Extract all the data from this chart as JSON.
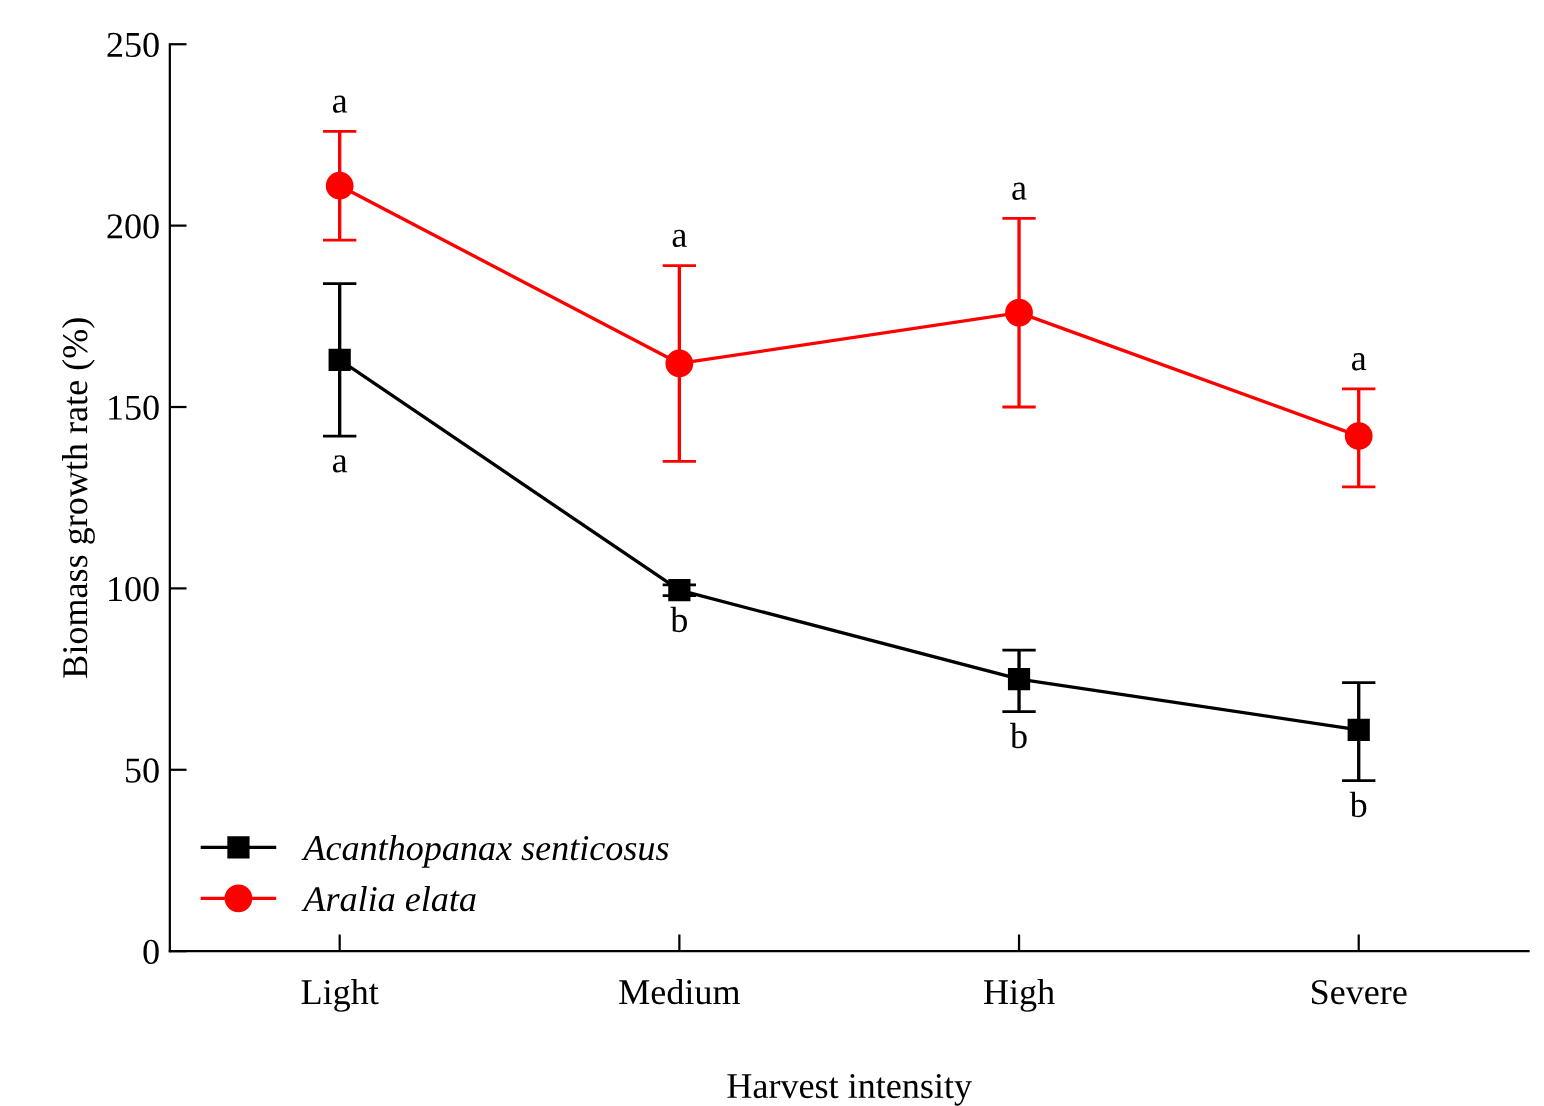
{
  "chart_data": {
    "type": "line",
    "xlabel": "Harvest intensity",
    "ylabel": "Biomass growth rate (%)",
    "categories": [
      "Light",
      "Medium",
      "High",
      "Severe"
    ],
    "series": [
      {
        "name": "Acanthopanax senticosus",
        "color": "#000000",
        "marker": "square",
        "values": [
          163,
          99.5,
          75,
          61
        ],
        "errors": [
          [
            142,
            184
          ],
          [
            98,
            101
          ],
          [
            66,
            83
          ],
          [
            47,
            74
          ]
        ]
      },
      {
        "name": "Aralia elata",
        "color": "#ff0000",
        "marker": "circle",
        "values": [
          211,
          162,
          176,
          142
        ],
        "errors": [
          [
            196,
            226
          ],
          [
            135,
            189
          ],
          [
            150,
            202
          ],
          [
            128,
            155
          ]
        ]
      }
    ],
    "ylim": [
      0,
      250
    ],
    "yticks": [
      0,
      50,
      100,
      150,
      200,
      250
    ],
    "legend": "bottom left",
    "grid": false,
    "annotations": [
      "a",
      "b",
      "b",
      "b",
      "a",
      "a",
      "a",
      "a"
    ]
  }
}
